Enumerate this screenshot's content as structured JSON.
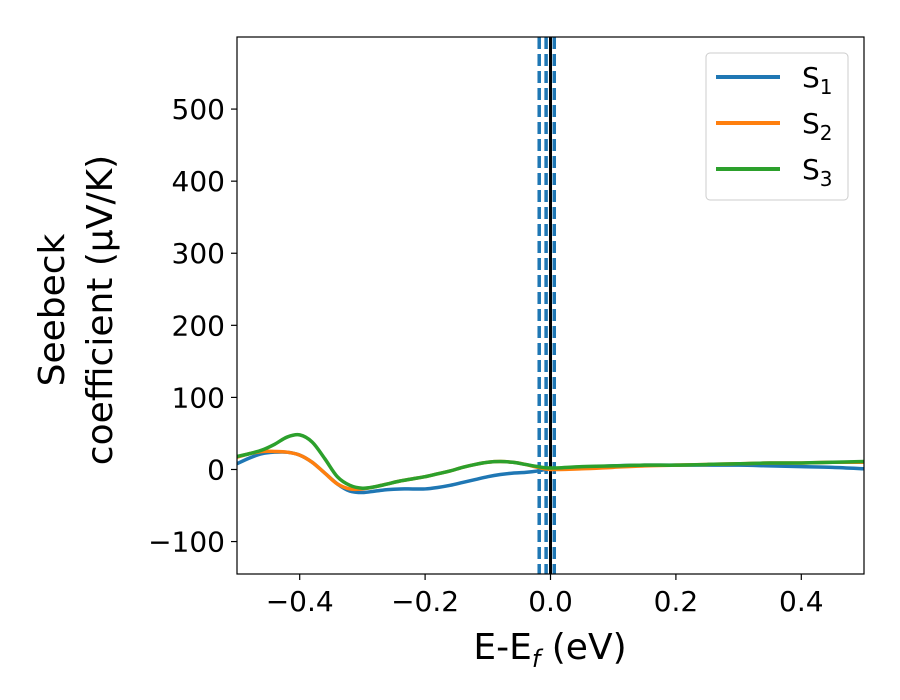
{
  "chart_data": {
    "type": "line",
    "xlabel": "E-E",
    "xlabel_sub": "f",
    "xlabel_unit": " (eV)",
    "ylabel_line1": "Seebeck",
    "ylabel_line2": "coefficient  (μV/K)",
    "xlim": [
      -0.5,
      0.5
    ],
    "ylim": [
      -145,
      600
    ],
    "xticks": [
      -0.4,
      -0.2,
      0.0,
      0.2,
      0.4
    ],
    "xtick_labels": [
      "−0.4",
      "−0.2",
      "0.0",
      "0.2",
      "0.4"
    ],
    "yticks": [
      -100,
      0,
      100,
      200,
      300,
      400,
      500
    ],
    "ytick_labels": [
      "−100",
      "0",
      "100",
      "200",
      "300",
      "400",
      "500"
    ],
    "grid": false,
    "legend_position": "top-right",
    "vertical_lines": [
      {
        "x": -0.018,
        "style": "dashed",
        "color": "#1f77b4"
      },
      {
        "x": -0.007,
        "style": "dashed",
        "color": "#1f77b4"
      },
      {
        "x": 0.006,
        "style": "dashed",
        "color": "#1f77b4"
      },
      {
        "x": 0.0,
        "style": "solid",
        "color": "#000000"
      }
    ],
    "series": [
      {
        "name": "S",
        "sub": "1",
        "color": "#1f77b4",
        "x": [
          -0.5,
          -0.48,
          -0.46,
          -0.44,
          -0.42,
          -0.4,
          -0.38,
          -0.36,
          -0.34,
          -0.32,
          -0.3,
          -0.28,
          -0.26,
          -0.24,
          -0.22,
          -0.2,
          -0.18,
          -0.16,
          -0.14,
          -0.12,
          -0.1,
          -0.08,
          -0.06,
          -0.04,
          -0.02,
          0.0,
          0.05,
          0.1,
          0.15,
          0.2,
          0.25,
          0.3,
          0.35,
          0.4,
          0.45,
          0.5
        ],
        "y": [
          8,
          16,
          22,
          24,
          24,
          20,
          10,
          -5,
          -20,
          -30,
          -32,
          -30,
          -28,
          -27,
          -27,
          -27,
          -25,
          -22,
          -18,
          -14,
          -10,
          -7,
          -5,
          -4,
          -2,
          1,
          3,
          5,
          6,
          6,
          6,
          6,
          5,
          4,
          3,
          1
        ]
      },
      {
        "name": "S",
        "sub": "2",
        "color": "#ff7f0e",
        "x": [
          -0.5,
          -0.48,
          -0.46,
          -0.44,
          -0.42,
          -0.4,
          -0.38,
          -0.36,
          -0.34,
          -0.32,
          -0.3,
          -0.28,
          -0.26,
          -0.24,
          -0.22,
          -0.2,
          -0.18,
          -0.16,
          -0.14,
          -0.12,
          -0.1,
          -0.08,
          -0.06,
          -0.04,
          -0.02,
          0.0,
          0.05,
          0.1,
          0.15,
          0.2,
          0.25,
          0.3,
          0.35,
          0.4,
          0.45,
          0.5
        ],
        "y": [
          17,
          22,
          25,
          25,
          24,
          20,
          10,
          -5,
          -20,
          -27,
          -27,
          -24,
          -20,
          -16,
          -13,
          -10,
          -6,
          -2,
          3,
          7,
          10,
          11,
          10,
          7,
          3,
          0,
          1,
          3,
          5,
          6,
          7,
          8,
          9,
          9,
          10,
          10
        ]
      },
      {
        "name": "S",
        "sub": "3",
        "color": "#2ca02c",
        "x": [
          -0.5,
          -0.48,
          -0.46,
          -0.44,
          -0.42,
          -0.4,
          -0.38,
          -0.36,
          -0.34,
          -0.32,
          -0.3,
          -0.28,
          -0.26,
          -0.24,
          -0.22,
          -0.2,
          -0.18,
          -0.16,
          -0.14,
          -0.12,
          -0.1,
          -0.08,
          -0.06,
          -0.04,
          -0.02,
          0.0,
          0.05,
          0.1,
          0.15,
          0.2,
          0.25,
          0.3,
          0.35,
          0.4,
          0.45,
          0.5
        ],
        "y": [
          18,
          22,
          27,
          35,
          45,
          48,
          38,
          15,
          -10,
          -22,
          -26,
          -24,
          -20,
          -16,
          -13,
          -10,
          -6,
          -2,
          3,
          7,
          10,
          11,
          10,
          7,
          4,
          2,
          4,
          5,
          6,
          6,
          7,
          8,
          9,
          9,
          10,
          11
        ]
      }
    ]
  }
}
